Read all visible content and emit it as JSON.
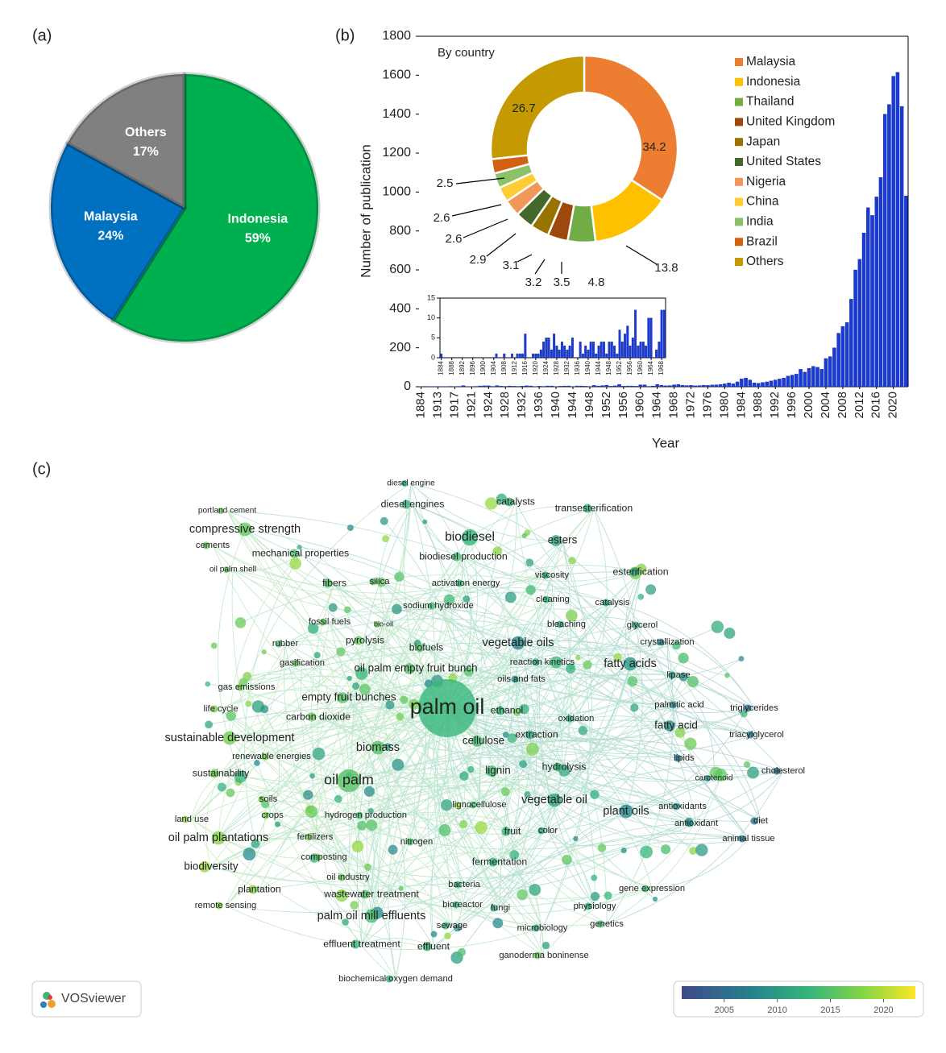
{
  "chart_data": [
    {
      "type": "pie",
      "panel": "(a)",
      "categories": [
        "Indonesia",
        "Malaysia",
        "Others"
      ],
      "values": [
        59,
        24,
        17
      ],
      "value_labels": [
        "59%",
        "24%",
        "17%"
      ],
      "colors": [
        "#00b050",
        "#0070c0",
        "#808080"
      ]
    },
    {
      "type": "bar",
      "panel": "(b)",
      "x_label": "Year",
      "y_label": "Number of publication",
      "color": "#1a3ad6",
      "categories": [
        "1884",
        null,
        null,
        null,
        "1913",
        null,
        null,
        null,
        "1917",
        null,
        null,
        null,
        "1921",
        null,
        null,
        null,
        "1924",
        null,
        null,
        null,
        "1928",
        null,
        null,
        null,
        "1932",
        null,
        null,
        null,
        "1936",
        null,
        null,
        null,
        "1940",
        null,
        null,
        null,
        "1944",
        null,
        null,
        null,
        "1948",
        null,
        null,
        null,
        "1952",
        null,
        null,
        null,
        "1956",
        null,
        null,
        null,
        "1960",
        null,
        null,
        null,
        "1964",
        null,
        null,
        null,
        "1968",
        null,
        null,
        null,
        "1972",
        null,
        null,
        null,
        "1976",
        null,
        null,
        null,
        "1980",
        null,
        null,
        null,
        "1984",
        null,
        null,
        null,
        "1988",
        null,
        null,
        null,
        "1992",
        null,
        null,
        null,
        "1996",
        null,
        null,
        null,
        "2000",
        null,
        null,
        null,
        "2004",
        null,
        null,
        null,
        "2008",
        null,
        null,
        null,
        "2012",
        null,
        null,
        null,
        "2016",
        null,
        null,
        null,
        "2020",
        null,
        null,
        null
      ],
      "values": [
        1,
        0,
        1,
        1,
        1,
        1,
        1,
        2,
        1,
        2,
        6,
        1,
        1,
        2,
        4,
        5,
        5,
        2,
        6,
        3,
        2,
        4,
        3,
        2,
        3,
        5,
        4,
        1,
        3,
        2,
        4,
        4,
        1,
        3,
        4,
        4,
        1,
        4,
        4,
        3,
        1,
        7,
        4,
        6,
        8,
        3,
        5,
        12,
        3,
        4,
        4,
        3,
        10,
        10,
        2,
        4,
        12,
        8,
        5,
        6,
        10,
        12,
        8,
        6,
        7,
        5,
        6,
        8,
        7,
        9,
        10,
        12,
        15,
        20,
        15,
        25,
        40,
        45,
        35,
        20,
        18,
        22,
        25,
        30,
        35,
        40,
        45,
        55,
        60,
        65,
        90,
        75,
        95,
        105,
        100,
        90,
        145,
        155,
        200,
        275,
        310,
        330,
        450,
        600,
        655,
        790,
        920,
        880,
        975,
        1075,
        1400,
        1450,
        1595,
        1615,
        1440,
        980
      ],
      "ylim": [
        0,
        1800
      ],
      "yticks": [
        0,
        200,
        400,
        600,
        800,
        1000,
        1200,
        1400,
        1600,
        1800
      ]
    },
    {
      "type": "donut",
      "title": "By country",
      "categories": [
        "Malaysia",
        "Indonesia",
        "Thailand",
        "United Kingdom",
        "Japan",
        "United States",
        "Nigeria",
        "China",
        "India",
        "Brazil",
        "Others"
      ],
      "values": [
        34.2,
        13.8,
        4.8,
        3.5,
        3.2,
        3.1,
        2.9,
        2.6,
        2.6,
        2.5,
        26.7
      ],
      "colors": [
        "#ed7d31",
        "#ffc000",
        "#70ad47",
        "#9e480e",
        "#997300",
        "#43682b",
        "#f1975a",
        "#ffcd33",
        "#8cc168",
        "#d26012",
        "#c49a00"
      ]
    },
    {
      "type": "bar",
      "color": "#1a3ad6",
      "categories": [
        "1884",
        null,
        null,
        null,
        "1888",
        null,
        null,
        null,
        "1892",
        null,
        null,
        null,
        "1896",
        null,
        null,
        null,
        "1900",
        null,
        null,
        null,
        "1904",
        null,
        null,
        null,
        "1908",
        null,
        null,
        null,
        "1912",
        null,
        null,
        null,
        "1916",
        null,
        null,
        null,
        "1920",
        null,
        null,
        null,
        "1924",
        null,
        null,
        null,
        "1928",
        null,
        null,
        null,
        "1932",
        null,
        null,
        null,
        "1936",
        null,
        null,
        null,
        "1940",
        null,
        null,
        null,
        "1944",
        null,
        null,
        null,
        "1948",
        null,
        null,
        null,
        "1952",
        null,
        null,
        null,
        "1956",
        null,
        null,
        null,
        "1960",
        null,
        null,
        null,
        "1964",
        null,
        null,
        null,
        "1968",
        null
      ],
      "values": [
        1,
        0,
        0,
        0,
        0,
        0,
        0,
        0,
        0,
        0,
        0,
        0,
        0,
        0,
        0,
        0,
        0,
        0,
        0,
        0,
        0,
        1,
        0,
        0,
        1,
        0,
        0,
        1,
        0,
        1,
        1,
        1,
        6,
        0,
        0,
        1,
        1,
        1,
        2,
        4,
        5,
        5,
        2,
        6,
        3,
        2,
        4,
        3,
        2,
        3,
        5,
        0,
        0,
        4,
        1,
        3,
        2,
        4,
        4,
        1,
        3,
        4,
        4,
        1,
        4,
        4,
        3,
        1,
        7,
        4,
        6,
        8,
        3,
        5,
        12,
        3,
        4,
        4,
        3,
        10,
        10,
        0,
        2,
        4,
        12,
        12
      ],
      "ylim": [
        0,
        15
      ],
      "yticks": [
        0,
        5,
        10,
        15
      ]
    },
    {
      "type": "network",
      "panel": "(c)",
      "logo": "VOSviewer",
      "colorbar": {
        "lim": [
          2001,
          2023
        ],
        "ticks": [
          2005,
          2010,
          2015,
          2020
        ]
      },
      "nodes": [
        {
          "label": "diesel engine",
          "year": 2012
        },
        {
          "label": "diesel engines",
          "year": 2012
        },
        {
          "label": "catalysts",
          "year": 2013
        },
        {
          "label": "transesterification",
          "year": 2013
        },
        {
          "label": "portland cement",
          "year": 2016
        },
        {
          "label": "compressive strength",
          "year": 2016
        },
        {
          "label": "biodiesel",
          "year": 2013
        },
        {
          "label": "esters",
          "year": 2011
        },
        {
          "label": "cements",
          "year": 2016
        },
        {
          "label": "mechanical properties",
          "year": 2015
        },
        {
          "label": "biodiesel production",
          "year": 2014
        },
        {
          "label": "oil palm shell",
          "year": 2016
        },
        {
          "label": "esterification",
          "year": 2010
        },
        {
          "label": "silica",
          "year": 2015
        },
        {
          "label": "fibers",
          "year": 2015
        },
        {
          "label": "activation energy",
          "year": 2013
        },
        {
          "label": "viscosity",
          "year": 2012
        },
        {
          "label": "cleaning",
          "year": 2013
        },
        {
          "label": "catalysis",
          "year": 2011
        },
        {
          "label": "sodium hydroxide",
          "year": 2014
        },
        {
          "label": "fossil fuels",
          "year": 2016
        },
        {
          "label": "bio-oil",
          "year": 2017
        },
        {
          "label": "bleaching",
          "year": 2011
        },
        {
          "label": "glycerol",
          "year": 2012
        },
        {
          "label": "rubber",
          "year": 2014
        },
        {
          "label": "pyrolysis",
          "year": 2016
        },
        {
          "label": "biofuels",
          "year": 2015
        },
        {
          "label": "vegetable oils",
          "year": 2008
        },
        {
          "label": "crystallization",
          "year": 2008
        },
        {
          "label": "gasification",
          "year": 2016
        },
        {
          "label": "reaction kinetics",
          "year": 2011
        },
        {
          "label": "oil palm empty fruit bunch",
          "year": 2015
        },
        {
          "label": "fatty acids",
          "year": 2010
        },
        {
          "label": "oils and fats",
          "year": 2009
        },
        {
          "label": "lipase",
          "year": 2009
        },
        {
          "label": "gas emissions",
          "year": 2017
        },
        {
          "label": "empty fruit bunches",
          "year": 2015
        },
        {
          "label": "palm oil",
          "year": 2013
        },
        {
          "label": "palmitic acid",
          "year": 2009
        },
        {
          "label": "triglycerides",
          "year": 2006
        },
        {
          "label": "ethanol",
          "year": 2013
        },
        {
          "label": "life cycle",
          "year": 2017
        },
        {
          "label": "carbon dioxide",
          "year": 2016
        },
        {
          "label": "oxidation",
          "year": 2012
        },
        {
          "label": "fatty acid",
          "year": 2009
        },
        {
          "label": "sustainable development",
          "year": 2017
        },
        {
          "label": "biomass",
          "year": 2015
        },
        {
          "label": "cellulose",
          "year": 2014
        },
        {
          "label": "extraction",
          "year": 2012
        },
        {
          "label": "triacylglycerol",
          "year": 2007
        },
        {
          "label": "renewable energies",
          "year": 2017
        },
        {
          "label": "lipids",
          "year": 2007
        },
        {
          "label": "lignin",
          "year": 2014
        },
        {
          "label": "hydrolysis",
          "year": 2013
        },
        {
          "label": "sustainability",
          "year": 2017
        },
        {
          "label": "oil palm",
          "year": 2015
        },
        {
          "label": "carotenoid",
          "year": 2008
        },
        {
          "label": "cholesterol",
          "year": 2005
        },
        {
          "label": "soils",
          "year": 2017
        },
        {
          "label": "vegetable oil",
          "year": 2011
        },
        {
          "label": "lignocellulose",
          "year": 2014
        },
        {
          "label": "antioxidants",
          "year": 2009
        },
        {
          "label": "plant oils",
          "year": 2008
        },
        {
          "label": "land use",
          "year": 2018
        },
        {
          "label": "crops",
          "year": 2017
        },
        {
          "label": "hydrogen production",
          "year": 2014
        },
        {
          "label": "diet",
          "year": 2006
        },
        {
          "label": "antioxidant",
          "year": 2009
        },
        {
          "label": "oil palm plantations",
          "year": 2018
        },
        {
          "label": "fertilizers",
          "year": 2017
        },
        {
          "label": "fruit",
          "year": 2013
        },
        {
          "label": "color",
          "year": 2012
        },
        {
          "label": "nitrogen",
          "year": 2015
        },
        {
          "label": "animal tissue",
          "year": 2006
        },
        {
          "label": "composting",
          "year": 2016
        },
        {
          "label": "fermentation",
          "year": 2013
        },
        {
          "label": "biodiversity",
          "year": 2019
        },
        {
          "label": "oil industry",
          "year": 2016
        },
        {
          "label": "plantation",
          "year": 2018
        },
        {
          "label": "bacteria",
          "year": 2013
        },
        {
          "label": "gene expression",
          "year": 2014
        },
        {
          "label": "wastewater treatment",
          "year": 2015
        },
        {
          "label": "remote sensing",
          "year": 2018
        },
        {
          "label": "bioreactor",
          "year": 2013
        },
        {
          "label": "fungi",
          "year": 2012
        },
        {
          "label": "physiology",
          "year": 2012
        },
        {
          "label": "palm oil mill effluents",
          "year": 2014
        },
        {
          "label": "sewage",
          "year": 2013
        },
        {
          "label": "genetics",
          "year": 2014
        },
        {
          "label": "microbiology",
          "year": 2011
        },
        {
          "label": "effluent treatment",
          "year": 2013
        },
        {
          "label": "effluent",
          "year": 2013
        },
        {
          "label": "ganoderma boninense",
          "year": 2016
        },
        {
          "label": "biochemical oxygen demand",
          "year": 2012
        }
      ]
    }
  ]
}
